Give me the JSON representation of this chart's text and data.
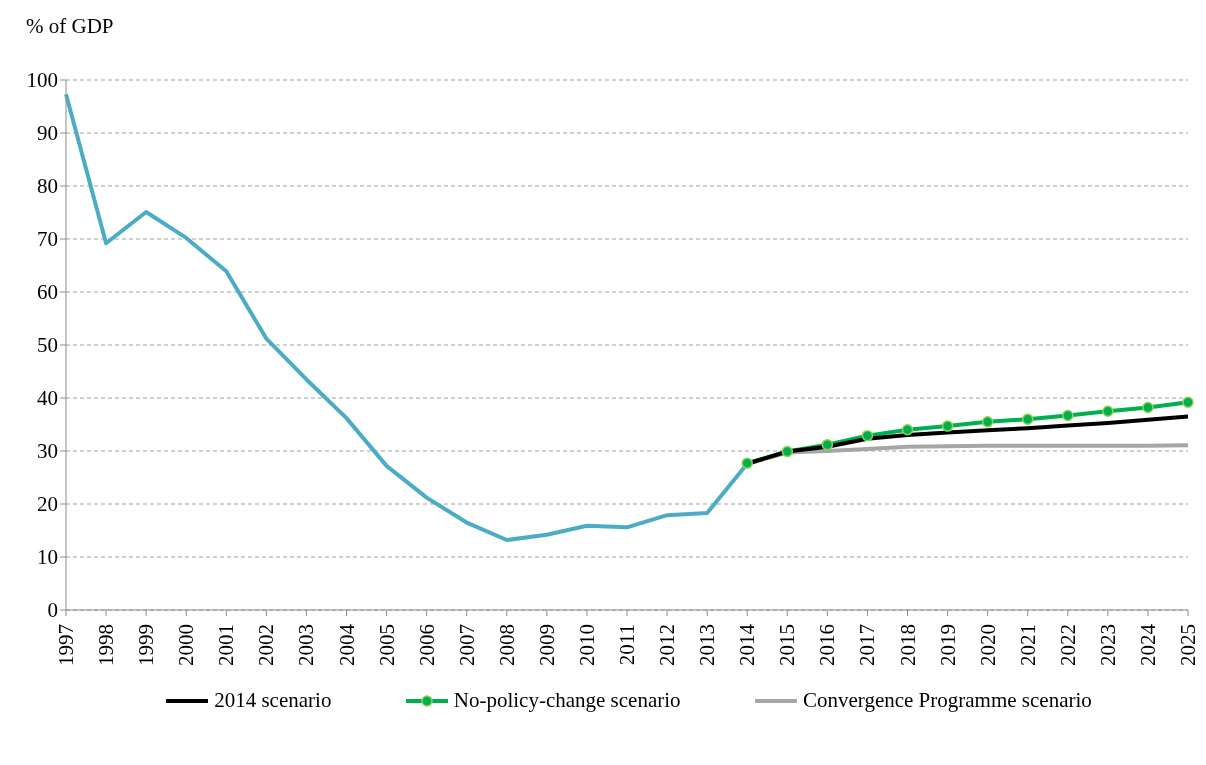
{
  "chart_data": {
    "type": "line",
    "ylabel": "% of GDP",
    "categories": [
      "1997",
      "1998",
      "1999",
      "2000",
      "2001",
      "2002",
      "2003",
      "2004",
      "2005",
      "2006",
      "2007",
      "2008",
      "2009",
      "2010",
      "2011",
      "2012",
      "2013",
      "2014",
      "2015",
      "2016",
      "2017",
      "2018",
      "2019",
      "2020",
      "2021",
      "2022",
      "2023",
      "2024",
      "2025"
    ],
    "series": [
      {
        "color": "#4bacc6",
        "marker": "none",
        "values": [
          97.3,
          69.2,
          75.1,
          70.2,
          63.9,
          51.2,
          43.5,
          36.2,
          27.2,
          21.2,
          16.5,
          13.2,
          14.2,
          15.9,
          15.6,
          17.9,
          18.3,
          27.6,
          null,
          null,
          null,
          null,
          null,
          null,
          null,
          null,
          null,
          null,
          null
        ]
      },
      {
        "name": "2014 scenario",
        "color": "#000000",
        "marker": "none",
        "values": [
          null,
          null,
          null,
          null,
          null,
          null,
          null,
          null,
          null,
          null,
          null,
          null,
          null,
          null,
          null,
          null,
          null,
          27.6,
          29.9,
          30.8,
          32.3,
          33.0,
          33.5,
          33.9,
          34.3,
          34.8,
          35.3,
          35.9,
          36.5
        ]
      },
      {
        "name": "No-policy-change scenario",
        "color": "#00b050",
        "marker": "circle",
        "values": [
          null,
          null,
          null,
          null,
          null,
          null,
          null,
          null,
          null,
          null,
          null,
          null,
          null,
          null,
          null,
          null,
          null,
          27.7,
          29.9,
          31.2,
          32.9,
          34.0,
          34.7,
          35.5,
          36.0,
          36.7,
          37.5,
          38.2,
          39.2
        ]
      },
      {
        "name": "Convergence Programme scenario",
        "color": "#a6a6a6",
        "marker": "none",
        "values": [
          null,
          null,
          null,
          null,
          null,
          null,
          null,
          null,
          null,
          null,
          null,
          null,
          null,
          null,
          null,
          null,
          null,
          27.6,
          29.7,
          30.0,
          30.4,
          30.8,
          30.9,
          31.0,
          31.0,
          31.0,
          31.0,
          31.0,
          31.1
        ]
      }
    ],
    "ylim": [
      0,
      100
    ],
    "yticks": [
      0,
      10,
      20,
      30,
      40,
      50,
      60,
      70,
      80,
      90,
      100
    ],
    "grid": "y",
    "legend": "bottom",
    "line_style": "solid"
  }
}
